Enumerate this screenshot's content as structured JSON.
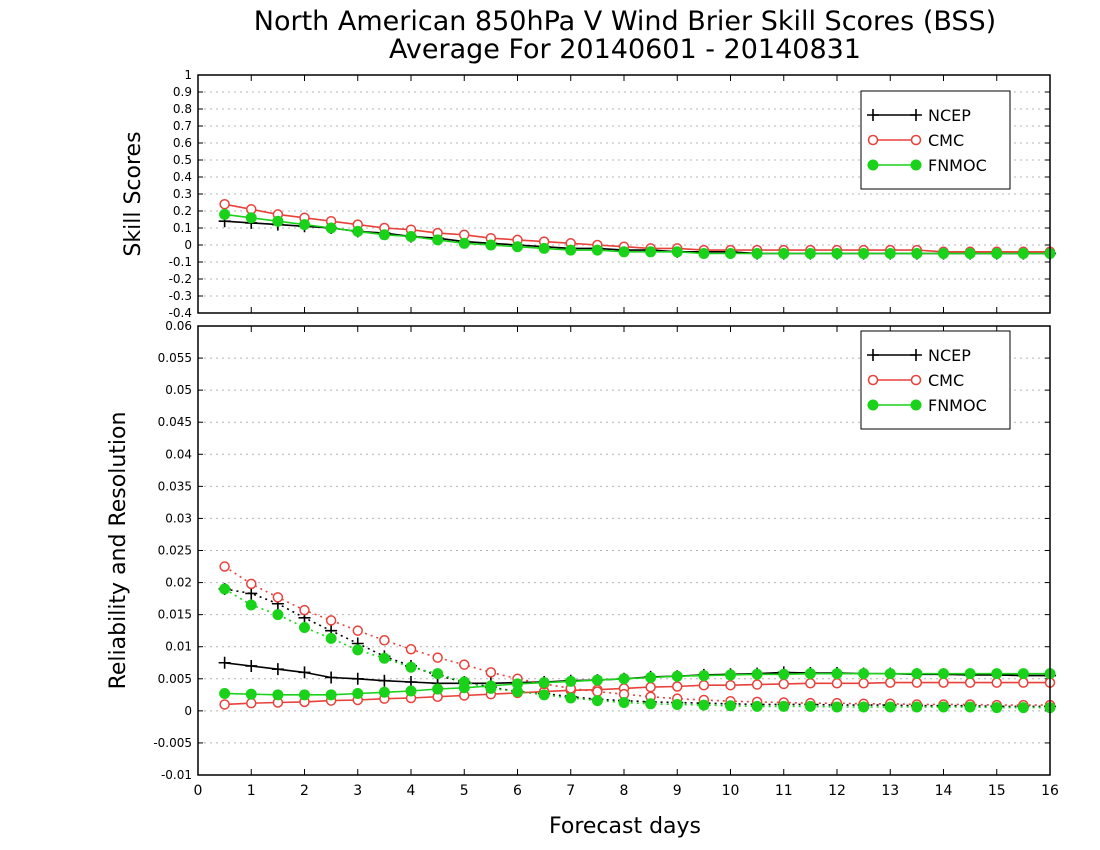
{
  "title": {
    "line1": "North American 850hPa V Wind Brier Skill Scores (BSS)",
    "line2": "Average For 20140601 - 20140831"
  },
  "colors": {
    "NCEP": "#000000",
    "CMC": "#e8413a",
    "FNMOC": "#19d219"
  },
  "chart_data": [
    {
      "type": "line",
      "ylabel": "Skill Scores",
      "xlabel": "Forecast days",
      "xlim": [
        0,
        16
      ],
      "ylim": [
        -0.4,
        1
      ],
      "xticks": [
        "0",
        "1",
        "2",
        "3",
        "4",
        "5",
        "6",
        "7",
        "8",
        "9",
        "10",
        "11",
        "12",
        "13",
        "14",
        "15",
        "16"
      ],
      "yticks": [
        "-0.4",
        "-0.3",
        "-0.2",
        "-0.1",
        "0",
        "0.1",
        "0.2",
        "0.3",
        "0.4",
        "0.5",
        "0.6",
        "0.7",
        "0.8",
        "0.9",
        "1"
      ],
      "grid": true,
      "legend": {
        "position": "top-right",
        "entries": [
          "NCEP",
          "CMC",
          "FNMOC"
        ]
      },
      "x": [
        0.5,
        1,
        1.5,
        2,
        2.5,
        3,
        3.5,
        4,
        4.5,
        5,
        5.5,
        6,
        6.5,
        7,
        7.5,
        8,
        8.5,
        9,
        9.5,
        10,
        10.5,
        11,
        11.5,
        12,
        12.5,
        13,
        13.5,
        14,
        14.5,
        15,
        15.5,
        16
      ],
      "series": [
        {
          "name": "NCEP",
          "style": "solid",
          "marker": "plus",
          "values": [
            0.14,
            0.13,
            0.12,
            0.11,
            0.1,
            0.08,
            0.07,
            0.05,
            0.04,
            0.02,
            0.01,
            0.0,
            -0.01,
            -0.02,
            -0.02,
            -0.03,
            -0.03,
            -0.04,
            -0.04,
            -0.04,
            -0.05,
            -0.05,
            -0.05,
            -0.05,
            -0.05,
            -0.05,
            -0.05,
            -0.05,
            -0.05,
            -0.05,
            -0.05,
            -0.05
          ]
        },
        {
          "name": "CMC",
          "style": "solid",
          "marker": "open-circle",
          "values": [
            0.24,
            0.21,
            0.18,
            0.16,
            0.14,
            0.12,
            0.1,
            0.09,
            0.07,
            0.06,
            0.04,
            0.03,
            0.02,
            0.01,
            0.0,
            -0.01,
            -0.02,
            -0.02,
            -0.03,
            -0.03,
            -0.03,
            -0.03,
            -0.03,
            -0.03,
            -0.03,
            -0.03,
            -0.03,
            -0.04,
            -0.04,
            -0.04,
            -0.04,
            -0.04
          ]
        },
        {
          "name": "FNMOC",
          "style": "solid",
          "marker": "filled-circle",
          "values": [
            0.18,
            0.16,
            0.14,
            0.12,
            0.1,
            0.08,
            0.06,
            0.05,
            0.03,
            0.01,
            0.0,
            -0.01,
            -0.02,
            -0.03,
            -0.03,
            -0.04,
            -0.04,
            -0.04,
            -0.05,
            -0.05,
            -0.05,
            -0.05,
            -0.05,
            -0.05,
            -0.05,
            -0.05,
            -0.05,
            -0.05,
            -0.05,
            -0.05,
            -0.05,
            -0.05
          ]
        }
      ]
    },
    {
      "type": "line",
      "ylabel": "Reliability and Resolution",
      "xlabel": "Forecast days",
      "xlim": [
        0,
        16
      ],
      "ylim": [
        -0.01,
        0.06
      ],
      "xticks": [
        "0",
        "1",
        "2",
        "3",
        "4",
        "5",
        "6",
        "7",
        "8",
        "9",
        "10",
        "11",
        "12",
        "13",
        "14",
        "15",
        "16"
      ],
      "yticks": [
        "-0.01",
        "-0.005",
        "0",
        "0.005",
        "0.01",
        "0.015",
        "0.02",
        "0.025",
        "0.03",
        "0.035",
        "0.04",
        "0.045",
        "0.05",
        "0.055",
        "0.06"
      ],
      "grid": true,
      "legend": {
        "position": "top-right",
        "entries": [
          "NCEP",
          "CMC",
          "FNMOC"
        ]
      },
      "x": [
        0.5,
        1,
        1.5,
        2,
        2.5,
        3,
        3.5,
        4,
        4.5,
        5,
        5.5,
        6,
        6.5,
        7,
        7.5,
        8,
        8.5,
        9,
        9.5,
        10,
        10.5,
        11,
        11.5,
        12,
        12.5,
        13,
        13.5,
        14,
        14.5,
        15,
        15.5,
        16
      ],
      "series": [
        {
          "name": "NCEP",
          "style": "solid",
          "marker": "plus",
          "legend": true,
          "values": [
            0.0075,
            0.007,
            0.0065,
            0.006,
            0.0052,
            0.005,
            0.0047,
            0.0045,
            0.0043,
            0.0043,
            0.0043,
            0.0044,
            0.0045,
            0.0047,
            0.0048,
            0.005,
            0.0053,
            0.0054,
            0.0056,
            0.0057,
            0.0058,
            0.006,
            0.0059,
            0.0059,
            0.0058,
            0.0058,
            0.0057,
            0.0057,
            0.0056,
            0.0056,
            0.0055,
            0.0055
          ]
        },
        {
          "name": "NCEP",
          "style": "dotted",
          "marker": "plus",
          "legend": false,
          "values": [
            0.019,
            0.0183,
            0.0167,
            0.0145,
            0.0125,
            0.0105,
            0.0085,
            0.007,
            0.0055,
            0.0045,
            0.0037,
            0.003,
            0.0027,
            0.0022,
            0.0018,
            0.0016,
            0.0014,
            0.0013,
            0.0012,
            0.0011,
            0.001,
            0.001,
            0.001,
            0.0009,
            0.0009,
            0.0009,
            0.0008,
            0.0008,
            0.0008,
            0.0007,
            0.0007,
            0.0007
          ]
        },
        {
          "name": "CMC",
          "style": "solid",
          "marker": "open-circle",
          "legend": true,
          "values": [
            0.001,
            0.0012,
            0.0013,
            0.0014,
            0.0016,
            0.0017,
            0.0019,
            0.002,
            0.0022,
            0.0024,
            0.0026,
            0.0028,
            0.003,
            0.0032,
            0.0033,
            0.0035,
            0.0037,
            0.0038,
            0.004,
            0.004,
            0.0041,
            0.0042,
            0.0043,
            0.0043,
            0.0043,
            0.0044,
            0.0044,
            0.0044,
            0.0044,
            0.0044,
            0.0044,
            0.0044
          ]
        },
        {
          "name": "CMC",
          "style": "dotted",
          "marker": "open-circle",
          "legend": false,
          "values": [
            0.0225,
            0.0198,
            0.0177,
            0.0157,
            0.0141,
            0.0125,
            0.011,
            0.0096,
            0.0083,
            0.0072,
            0.006,
            0.005,
            0.0042,
            0.0035,
            0.003,
            0.0026,
            0.0022,
            0.0019,
            0.0017,
            0.0015,
            0.0014,
            0.0013,
            0.0012,
            0.0012,
            0.0011,
            0.0011,
            0.001,
            0.001,
            0.001,
            0.0009,
            0.0009,
            0.0009
          ]
        },
        {
          "name": "FNMOC",
          "style": "solid",
          "marker": "filled-circle",
          "legend": true,
          "values": [
            0.0027,
            0.0026,
            0.0025,
            0.0025,
            0.0025,
            0.0027,
            0.0029,
            0.0031,
            0.0034,
            0.0036,
            0.0039,
            0.0042,
            0.0044,
            0.0046,
            0.0048,
            0.005,
            0.0052,
            0.0054,
            0.0055,
            0.0056,
            0.0057,
            0.0057,
            0.0058,
            0.0058,
            0.0058,
            0.0058,
            0.0058,
            0.0058,
            0.0058,
            0.0058,
            0.0058,
            0.0058
          ]
        },
        {
          "name": "FNMOC",
          "style": "dotted",
          "marker": "filled-circle",
          "legend": false,
          "values": [
            0.019,
            0.0165,
            0.015,
            0.013,
            0.0113,
            0.0095,
            0.0082,
            0.0068,
            0.0058,
            0.0045,
            0.0035,
            0.003,
            0.0025,
            0.002,
            0.0016,
            0.0013,
            0.0011,
            0.001,
            0.0009,
            0.0008,
            0.0007,
            0.0007,
            0.0007,
            0.0006,
            0.0006,
            0.0006,
            0.0006,
            0.0006,
            0.0006,
            0.0005,
            0.0005,
            0.0005
          ]
        }
      ]
    }
  ]
}
